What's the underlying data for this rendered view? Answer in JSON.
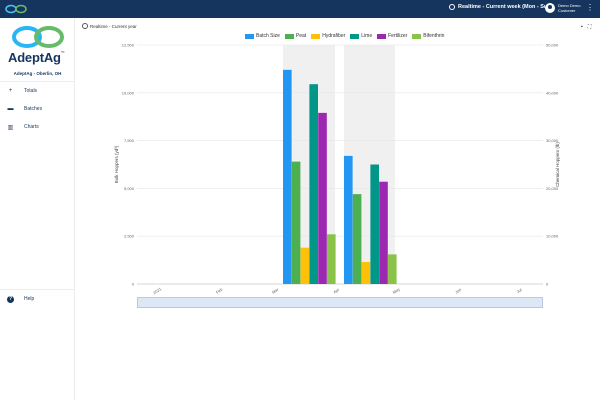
{
  "header": {
    "realtime_label": "Realtime - Current week (Mon - Sun)",
    "user_name": "Demo Demo",
    "user_role": "Customer"
  },
  "brand": {
    "name": "AdeptAg",
    "location": "AdeptAg - Oberlin, OH"
  },
  "sidebar": {
    "items": [
      {
        "icon": "plus-icon",
        "label": "Totals"
      },
      {
        "icon": "batches-icon",
        "label": "Batches"
      },
      {
        "icon": "charts-icon",
        "label": "Charts"
      }
    ],
    "help_label": "Help"
  },
  "main": {
    "mode_label": "Realtime - Current year"
  },
  "colors": {
    "header": "#16355e",
    "batch_size": "#2196f3",
    "peat": "#4caf50",
    "hydrafiber": "#ffc107",
    "lime": "#009688",
    "fertilizer": "#9c27b0",
    "bifenthrin": "#8bc34a",
    "highlight": "#f0f0f0"
  },
  "chart_data": {
    "type": "bar",
    "legend": [
      "Batch Size",
      "Peat",
      "Hydrafiber",
      "Lime",
      "Fertilizer",
      "Bifenthrin"
    ],
    "legend_position": "top",
    "left_axis": {
      "label": "Bulk Hoppers (yd³)",
      "ticks": [
        "0",
        "2,500",
        "5,000",
        "7,500",
        "10,000",
        "12,500"
      ],
      "range": [
        0,
        12500
      ]
    },
    "right_axis": {
      "label": "Chemical Hoppers (lb)",
      "ticks": [
        "0",
        "10,000",
        "20,000",
        "30,000",
        "40,000",
        "50,000"
      ],
      "range": [
        0,
        50000
      ]
    },
    "x_ticks": [
      "2021",
      "Feb",
      "Mar",
      "Apr",
      "May",
      "Jun",
      "Jul"
    ],
    "groups": [
      {
        "period": "Mar",
        "batch_size": 11200,
        "peat": 6400,
        "hydrafiber": 1900,
        "lime": 10450,
        "fertilizer": 8950,
        "bifenthrin": 2600
      },
      {
        "period": "Apr",
        "batch_size": 6700,
        "peat": 4700,
        "hydrafiber": 1150,
        "lime": 6250,
        "fertilizer": 5350,
        "bifenthrin": 1550
      }
    ],
    "grid": true
  }
}
